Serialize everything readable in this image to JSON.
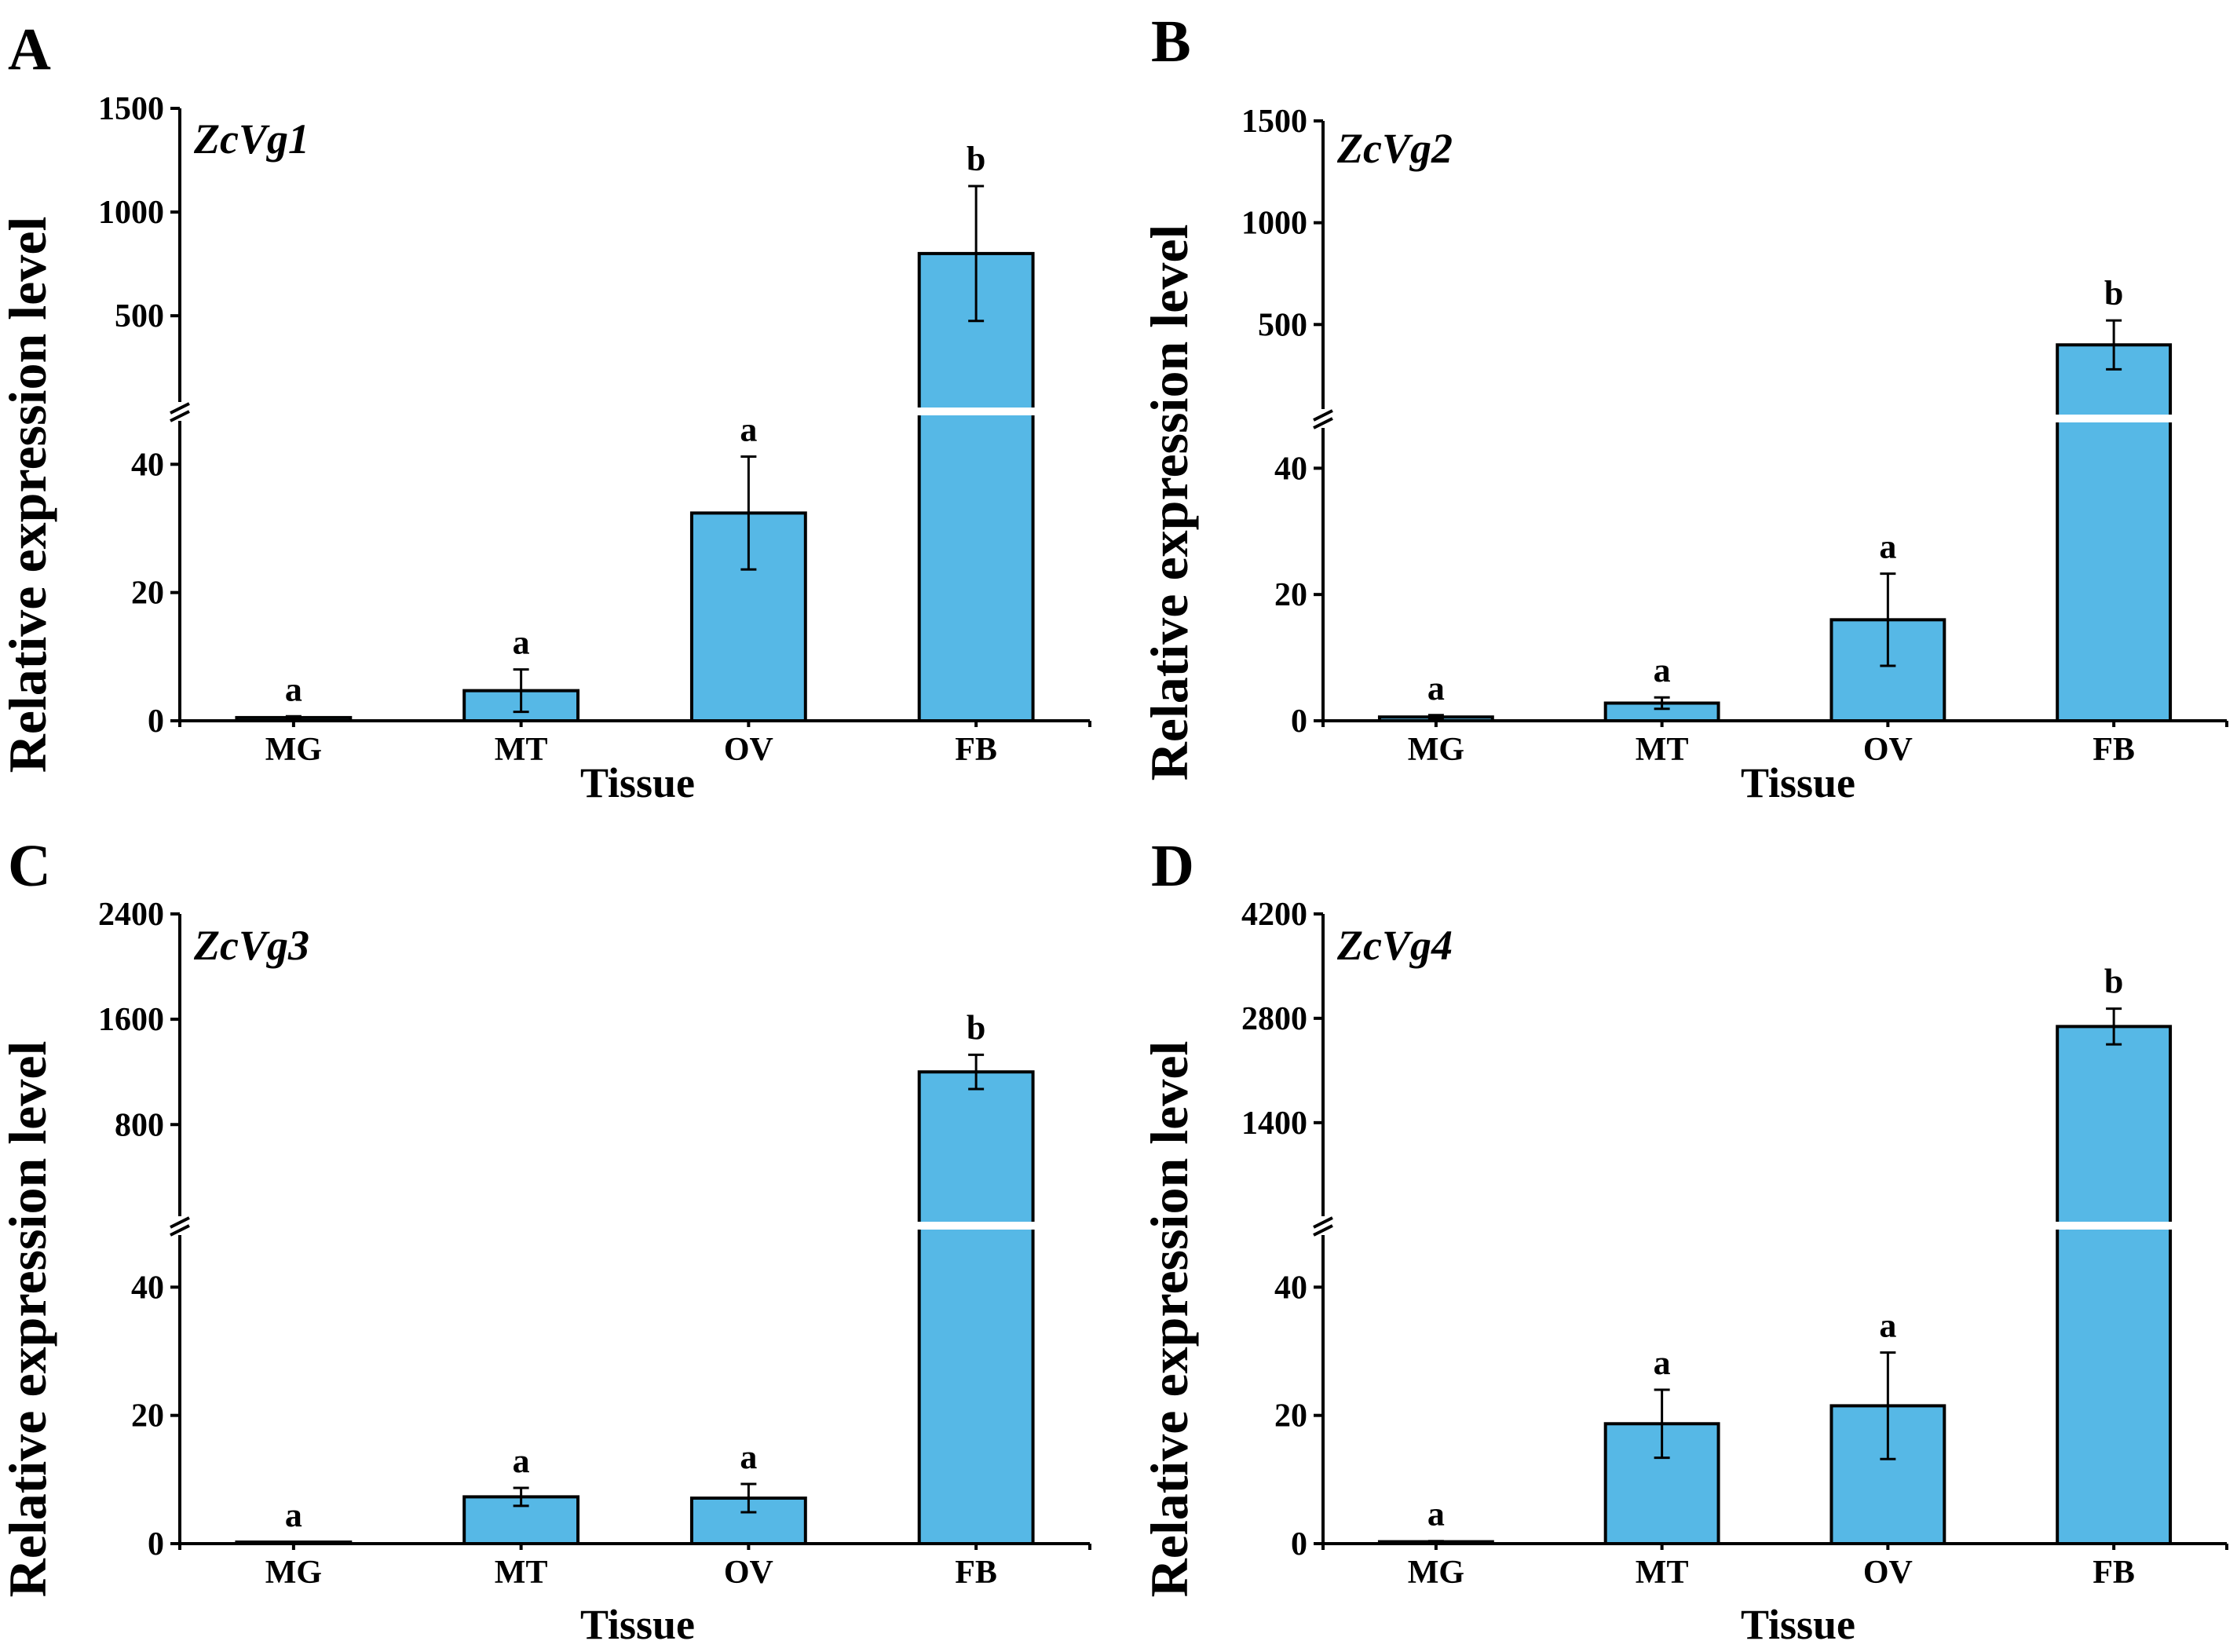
{
  "chart_data": [
    {
      "type": "bar",
      "panel": "A",
      "title": "ZcVg1",
      "xlabel": "Tissue",
      "ylabel": "Relative expression level",
      "categories": [
        "MG",
        "MT",
        "OV",
        "FB"
      ],
      "values": [
        0.5,
        4.7,
        32.4,
        800
      ],
      "errors": [
        0.2,
        3.3,
        8.8,
        325
      ],
      "significance": [
        "a",
        "a",
        "a",
        "b"
      ],
      "lower_ylim": [
        0,
        48
      ],
      "lower_ticks": [
        0,
        20,
        40
      ],
      "lower_tick_labels": [
        "0",
        "20",
        "40"
      ],
      "upper_ylim": [
        50,
        1500
      ],
      "upper_ticks": [
        500,
        1000,
        1500
      ],
      "upper_tick_labels": [
        "500",
        "1000",
        "1500"
      ],
      "color": "#56B8E6"
    },
    {
      "type": "bar",
      "panel": "B",
      "title": "ZcVg2",
      "xlabel": "Tissue",
      "ylabel": "Relative expression level",
      "categories": [
        "MG",
        "MT",
        "OV",
        "FB"
      ],
      "values": [
        0.6,
        2.8,
        16.0,
        400
      ],
      "errors": [
        0.3,
        0.9,
        7.3,
        120
      ],
      "significance": [
        "a",
        "a",
        "a",
        "b"
      ],
      "lower_ylim": [
        0,
        48
      ],
      "lower_ticks": [
        0,
        20,
        40
      ],
      "lower_tick_labels": [
        "0",
        "20",
        "40"
      ],
      "upper_ylim": [
        50,
        1500
      ],
      "upper_ticks": [
        500,
        1000,
        1500
      ],
      "upper_tick_labels": [
        "500",
        "1000",
        "1500"
      ],
      "color": "#56B8E6"
    },
    {
      "type": "bar",
      "panel": "C",
      "title": "ZcVg3",
      "xlabel": "Tissue",
      "ylabel": "Relative expression level",
      "categories": [
        "MG",
        "MT",
        "OV",
        "FB"
      ],
      "values": [
        0.1,
        7.3,
        7.1,
        1200
      ],
      "errors": [
        0.05,
        1.4,
        2.2,
        130
      ],
      "significance": [
        "a",
        "a",
        "a",
        "b"
      ],
      "lower_ylim": [
        0,
        48
      ],
      "lower_ticks": [
        0,
        20,
        40
      ],
      "lower_tick_labels": [
        "0",
        "20",
        "40"
      ],
      "upper_ylim": [
        50,
        2400
      ],
      "upper_ticks": [
        800,
        1600,
        2400
      ],
      "upper_tick_labels": [
        "800",
        "1600",
        "2400"
      ],
      "color": "#56B8E6"
    },
    {
      "type": "bar",
      "panel": "D",
      "title": "ZcVg4",
      "xlabel": "Tissue",
      "ylabel": "Relative expression level",
      "categories": [
        "MG",
        "MT",
        "OV",
        "FB"
      ],
      "values": [
        0.3,
        18.7,
        21.5,
        2690
      ],
      "errors": [
        0.1,
        5.3,
        8.3,
        240
      ],
      "significance": [
        "a",
        "a",
        "a",
        "b"
      ],
      "lower_ylim": [
        0,
        48
      ],
      "lower_ticks": [
        0,
        20,
        40
      ],
      "lower_tick_labels": [
        "0",
        "20",
        "40"
      ],
      "upper_ylim": [
        50,
        4200
      ],
      "upper_ticks": [
        1400,
        2800,
        4200
      ],
      "upper_tick_labels": [
        "1400",
        "2800",
        "4200"
      ],
      "color": "#56B8E6"
    }
  ]
}
